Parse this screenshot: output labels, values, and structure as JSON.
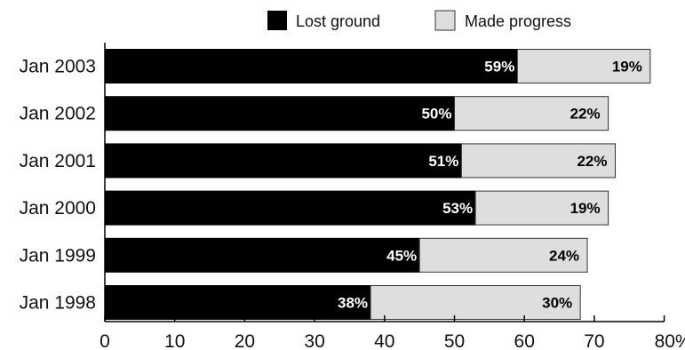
{
  "chart_data": {
    "type": "bar",
    "orientation": "horizontal",
    "stacked": true,
    "title": "",
    "xlabel": "",
    "ylabel": "",
    "categories": [
      "Jan 2003",
      "Jan 2002",
      "Jan 2001",
      "Jan 2000",
      "Jan 1999",
      "Jan 1998"
    ],
    "series": [
      {
        "name": "Lost ground",
        "values": [
          59,
          50,
          51,
          53,
          45,
          38
        ],
        "labels": [
          "59%",
          "50%",
          "51%",
          "53%",
          "45%",
          "38%"
        ],
        "color": "#000000"
      },
      {
        "name": "Made progress",
        "values": [
          19,
          22,
          22,
          19,
          24,
          30
        ],
        "labels": [
          "19%",
          "22%",
          "22%",
          "19%",
          "24%",
          "30%"
        ],
        "color": "#dedede"
      }
    ],
    "xlim": [
      0,
      80
    ],
    "xticks": [
      "0",
      "10",
      "20",
      "30",
      "40",
      "50",
      "60",
      "70",
      "80%"
    ],
    "grid": false,
    "legend_position": "top"
  }
}
